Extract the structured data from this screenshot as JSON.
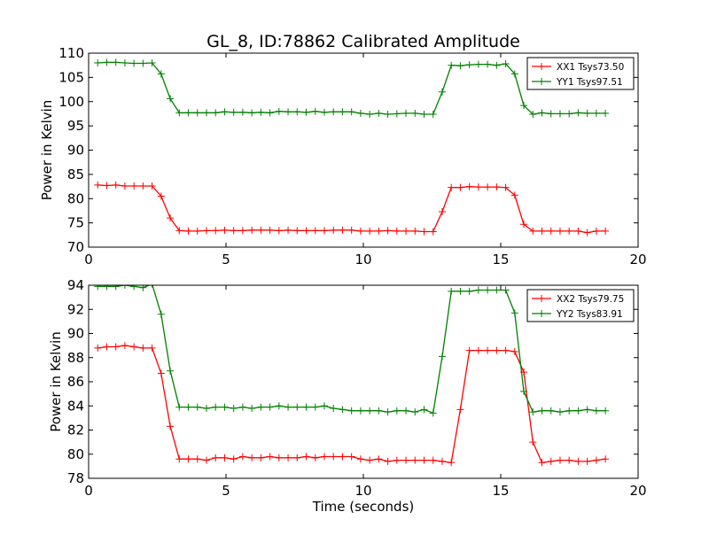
{
  "title": "GL_8, ID:78862 Calibrated Amplitude",
  "chart_data": [
    {
      "type": "line",
      "xlabel": "",
      "ylabel": "Power in Kelvin",
      "xlim": [
        0,
        20
      ],
      "ylim": [
        70,
        110
      ],
      "xticks": [
        0,
        5,
        10,
        15,
        20
      ],
      "yticks": [
        70,
        75,
        80,
        85,
        90,
        95,
        100,
        105,
        110
      ],
      "grid": false,
      "legend_position": "top-right",
      "x": [
        0.33,
        0.66,
        0.99,
        1.32,
        1.65,
        1.98,
        2.31,
        2.64,
        2.97,
        3.3,
        3.63,
        3.96,
        4.29,
        4.62,
        4.95,
        5.28,
        5.61,
        5.94,
        6.27,
        6.6,
        6.93,
        7.26,
        7.59,
        7.92,
        8.25,
        8.58,
        8.91,
        9.24,
        9.57,
        9.9,
        10.23,
        10.56,
        10.89,
        11.22,
        11.55,
        11.88,
        12.21,
        12.54,
        12.87,
        13.2,
        13.53,
        13.86,
        14.19,
        14.52,
        14.85,
        15.18,
        15.51,
        15.84,
        16.17,
        16.5,
        16.83,
        17.16,
        17.49,
        17.82,
        18.15,
        18.48,
        18.81
      ],
      "series": [
        {
          "name": "XX1 Tsys73.50",
          "color": "#ff0000",
          "values": [
            82.8,
            82.7,
            82.8,
            82.6,
            82.6,
            82.6,
            82.6,
            80.5,
            76.0,
            73.4,
            73.3,
            73.3,
            73.4,
            73.4,
            73.5,
            73.4,
            73.4,
            73.5,
            73.5,
            73.5,
            73.4,
            73.5,
            73.4,
            73.4,
            73.4,
            73.4,
            73.5,
            73.5,
            73.5,
            73.3,
            73.3,
            73.3,
            73.4,
            73.3,
            73.3,
            73.3,
            73.2,
            73.2,
            77.3,
            82.3,
            82.3,
            82.5,
            82.4,
            82.4,
            82.4,
            82.3,
            80.7,
            74.7,
            73.3,
            73.3,
            73.3,
            73.3,
            73.3,
            73.3,
            73.0,
            73.3,
            73.3
          ]
        },
        {
          "name": "YY1 Tsys97.51",
          "color": "#008000",
          "values": [
            108.0,
            108.1,
            108.1,
            108.0,
            107.9,
            107.9,
            108.0,
            105.7,
            100.6,
            97.7,
            97.7,
            97.7,
            97.7,
            97.7,
            97.9,
            97.8,
            97.8,
            97.7,
            97.8,
            97.7,
            98.0,
            97.9,
            97.9,
            97.8,
            98.0,
            97.8,
            97.9,
            97.9,
            97.9,
            97.6,
            97.4,
            97.6,
            97.4,
            97.5,
            97.6,
            97.6,
            97.4,
            97.4,
            102.0,
            107.5,
            107.4,
            107.6,
            107.7,
            107.7,
            107.5,
            107.8,
            105.7,
            99.2,
            97.4,
            97.7,
            97.5,
            97.5,
            97.5,
            97.7,
            97.6,
            97.6,
            97.6
          ]
        }
      ]
    },
    {
      "type": "line",
      "xlabel": "Time (seconds)",
      "ylabel": "Power in Kelvin",
      "xlim": [
        0,
        20
      ],
      "ylim": [
        78,
        94
      ],
      "xticks": [
        0,
        5,
        10,
        15,
        20
      ],
      "yticks": [
        78,
        80,
        82,
        84,
        86,
        88,
        90,
        92,
        94
      ],
      "grid": false,
      "legend_position": "top-right",
      "x": [
        0.33,
        0.66,
        0.99,
        1.32,
        1.65,
        1.98,
        2.31,
        2.64,
        2.97,
        3.3,
        3.63,
        3.96,
        4.29,
        4.62,
        4.95,
        5.28,
        5.61,
        5.94,
        6.27,
        6.6,
        6.93,
        7.26,
        7.59,
        7.92,
        8.25,
        8.58,
        8.91,
        9.24,
        9.57,
        9.9,
        10.23,
        10.56,
        10.89,
        11.22,
        11.55,
        11.88,
        12.21,
        12.54,
        12.87,
        13.2,
        13.53,
        13.86,
        14.19,
        14.52,
        14.85,
        15.18,
        15.51,
        15.84,
        16.17,
        16.5,
        16.83,
        17.16,
        17.49,
        17.82,
        18.15,
        18.48,
        18.81
      ],
      "series": [
        {
          "name": "XX2 Tsys79.75",
          "color": "#ff0000",
          "values": [
            88.8,
            88.9,
            88.9,
            89.0,
            88.9,
            88.8,
            88.8,
            86.7,
            82.3,
            79.6,
            79.6,
            79.6,
            79.5,
            79.7,
            79.7,
            79.6,
            79.8,
            79.7,
            79.7,
            79.8,
            79.7,
            79.7,
            79.7,
            79.8,
            79.7,
            79.8,
            79.8,
            79.8,
            79.8,
            79.6,
            79.5,
            79.6,
            79.4,
            79.5,
            79.5,
            79.5,
            79.5,
            79.5,
            79.4,
            79.3,
            83.7,
            88.6,
            88.6,
            88.6,
            88.6,
            88.6,
            88.5,
            86.8,
            81.0,
            79.3,
            79.4,
            79.5,
            79.5,
            79.4,
            79.4,
            79.5,
            79.6
          ]
        },
        {
          "name": "YY2 Tsys83.91",
          "color": "#008000",
          "values": [
            93.9,
            93.9,
            93.9,
            94.0,
            93.9,
            93.8,
            94.1,
            91.6,
            86.9,
            83.9,
            83.9,
            83.9,
            83.8,
            83.9,
            83.9,
            83.8,
            83.9,
            83.8,
            83.9,
            83.9,
            84.0,
            83.9,
            83.9,
            83.9,
            83.9,
            84.0,
            83.8,
            83.7,
            83.6,
            83.6,
            83.6,
            83.6,
            83.5,
            83.6,
            83.6,
            83.5,
            83.7,
            83.4,
            88.1,
            93.5,
            93.5,
            93.5,
            93.6,
            93.6,
            93.6,
            93.6,
            91.7,
            85.2,
            83.5,
            83.6,
            83.6,
            83.5,
            83.6,
            83.6,
            83.7,
            83.6,
            83.6
          ]
        }
      ]
    }
  ]
}
